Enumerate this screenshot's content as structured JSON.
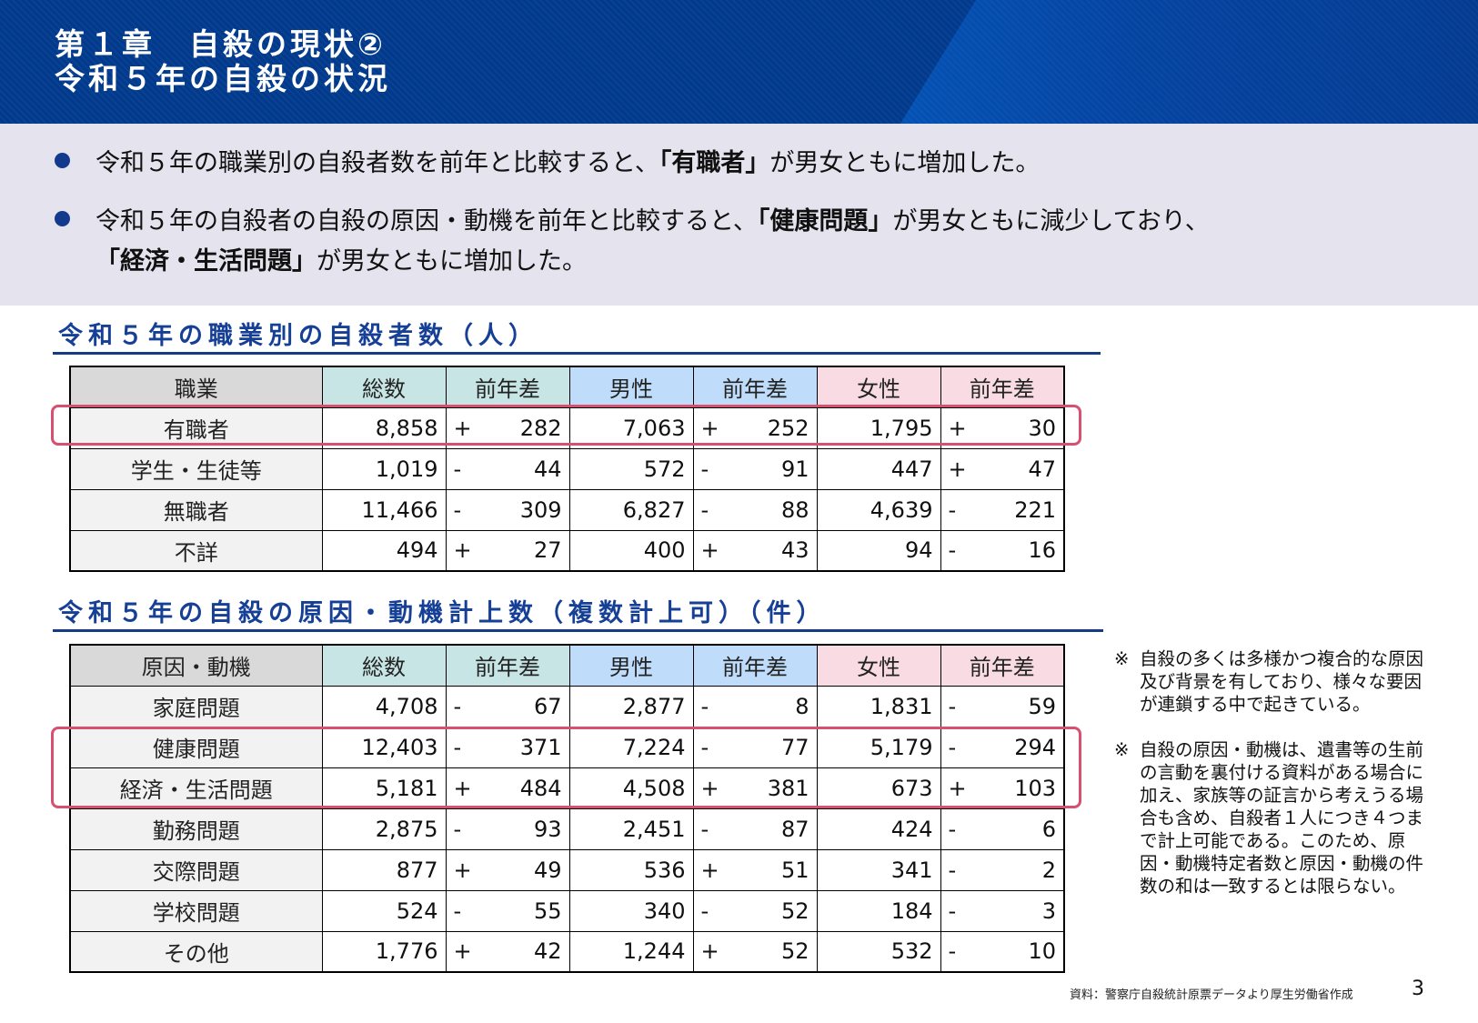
{
  "header": {
    "line1": "第１章　自殺の現状②",
    "line2": "令和５年の自殺の状況"
  },
  "summary": {
    "bullet1": {
      "pre": "令和５年の職業別の自殺者数を前年と比較すると、",
      "bold": "「有職者」",
      "post": "が男女ともに増加した。"
    },
    "bullet2": {
      "pre": "令和５年の自殺者の自殺の原因・動機を前年と比較すると、",
      "bold1": "「健康問題」",
      "mid": "が男女ともに減少しており、",
      "bold2": "「経済・生活問題」",
      "post": "が男女ともに増加した。"
    }
  },
  "table1": {
    "title": "令和５年の職業別の自殺者数（人）",
    "headers": [
      "職業",
      "総数",
      "前年差",
      "男性",
      "前年差",
      "女性",
      "前年差"
    ],
    "rows": [
      {
        "label": "有職者",
        "total": "8,858",
        "total_sign": "+",
        "total_diff": "282",
        "male": "7,063",
        "male_sign": "+",
        "male_diff": "252",
        "female": "1,795",
        "female_sign": "+",
        "female_diff": "30"
      },
      {
        "label": "学生・生徒等",
        "total": "1,019",
        "total_sign": "-",
        "total_diff": "44",
        "male": "572",
        "male_sign": "-",
        "male_diff": "91",
        "female": "447",
        "female_sign": "+",
        "female_diff": "47"
      },
      {
        "label": "無職者",
        "total": "11,466",
        "total_sign": "-",
        "total_diff": "309",
        "male": "6,827",
        "male_sign": "-",
        "male_diff": "88",
        "female": "4,639",
        "female_sign": "-",
        "female_diff": "221"
      },
      {
        "label": "不詳",
        "total": "494",
        "total_sign": "+",
        "total_diff": "27",
        "male": "400",
        "male_sign": "+",
        "male_diff": "43",
        "female": "94",
        "female_sign": "-",
        "female_diff": "16"
      }
    ]
  },
  "table2": {
    "title": "令和５年の自殺の原因・動機計上数（複数計上可）（件）",
    "headers": [
      "原因・動機",
      "総数",
      "前年差",
      "男性",
      "前年差",
      "女性",
      "前年差"
    ],
    "rows": [
      {
        "label": "家庭問題",
        "total": "4,708",
        "total_sign": "-",
        "total_diff": "67",
        "male": "2,877",
        "male_sign": "-",
        "male_diff": "8",
        "female": "1,831",
        "female_sign": "-",
        "female_diff": "59"
      },
      {
        "label": "健康問題",
        "total": "12,403",
        "total_sign": "-",
        "total_diff": "371",
        "male": "7,224",
        "male_sign": "-",
        "male_diff": "77",
        "female": "5,179",
        "female_sign": "-",
        "female_diff": "294"
      },
      {
        "label": "経済・生活問題",
        "total": "5,181",
        "total_sign": "+",
        "total_diff": "484",
        "male": "4,508",
        "male_sign": "+",
        "male_diff": "381",
        "female": "673",
        "female_sign": "+",
        "female_diff": "103"
      },
      {
        "label": "勤務問題",
        "total": "2,875",
        "total_sign": "-",
        "total_diff": "93",
        "male": "2,451",
        "male_sign": "-",
        "male_diff": "87",
        "female": "424",
        "female_sign": "-",
        "female_diff": "6"
      },
      {
        "label": "交際問題",
        "total": "877",
        "total_sign": "+",
        "total_diff": "49",
        "male": "536",
        "male_sign": "+",
        "male_diff": "51",
        "female": "341",
        "female_sign": "-",
        "female_diff": "2"
      },
      {
        "label": "学校問題",
        "total": "524",
        "total_sign": "-",
        "total_diff": "55",
        "male": "340",
        "male_sign": "-",
        "male_diff": "52",
        "female": "184",
        "female_sign": "-",
        "female_diff": "3"
      },
      {
        "label": "その他",
        "total": "1,776",
        "total_sign": "+",
        "total_diff": "42",
        "male": "1,244",
        "male_sign": "+",
        "male_diff": "52",
        "female": "532",
        "female_sign": "-",
        "female_diff": "10"
      }
    ]
  },
  "notes": [
    {
      "mark": "※",
      "text": "自殺の多くは多様かつ複合的な原因及び背景を有しており、様々な要因が連鎖する中で起きている。"
    },
    {
      "mark": "※",
      "text": "自殺の原因・動機は、遺書等の生前の言動を裏付ける資料がある場合に加え、家族等の証言から考えうる場合も含め、自殺者１人につき４つまで計上可能である。このため、原因・動機特定者数と原因・動機の件数の和は一致するとは限らない。"
    }
  ],
  "footer": {
    "source": "資料：警察庁自殺統計原票データより厚生労働省作成",
    "page": "3"
  },
  "colors": {
    "banner": "#013a8c",
    "accent_blue": "#163f96",
    "highlight": "#d8506f",
    "header_label": "#d9d9d9",
    "header_total": "#c7e5e4",
    "header_male": "#bfdcfb",
    "header_female": "#f9dce3",
    "summary_bg": "#e4e3ee"
  }
}
